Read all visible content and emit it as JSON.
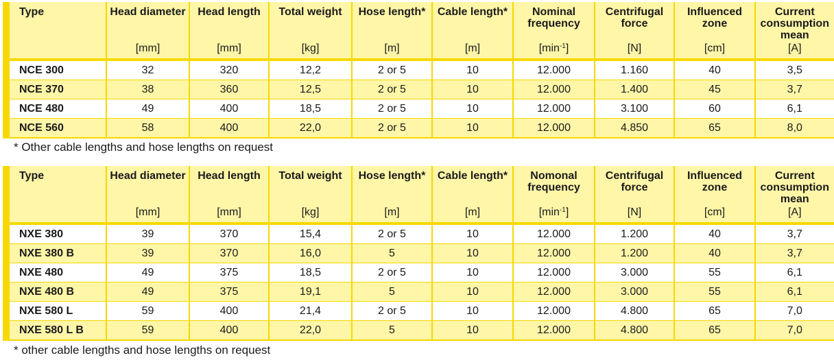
{
  "table1": {
    "headers": [
      {
        "name": "Type",
        "unit": ""
      },
      {
        "name": "Head diameter",
        "unit": "[mm]"
      },
      {
        "name": "Head length",
        "unit": "[mm]"
      },
      {
        "name": "Total weight",
        "unit": "[kg]"
      },
      {
        "name": "Hose length*",
        "unit": "[m]"
      },
      {
        "name": "Cable length*",
        "unit": "[m]"
      },
      {
        "name": "Nominal frequency",
        "unit": "[min-1]"
      },
      {
        "name": "Centrifugal force",
        "unit": "[N]"
      },
      {
        "name": "Influenced zone",
        "unit": "[cm]"
      },
      {
        "name": "Current consumption mean",
        "unit": "[A]"
      }
    ],
    "rows": [
      [
        "NCE 300",
        "32",
        "320",
        "12,2",
        "2 or 5",
        "10",
        "12.000",
        "1.160",
        "40",
        "3,5"
      ],
      [
        "NCE 370",
        "38",
        "360",
        "12,5",
        "2 or 5",
        "10",
        "12.000",
        "1.400",
        "45",
        "3,7"
      ],
      [
        "NCE 480",
        "49",
        "400",
        "18,5",
        "2 or 5",
        "10",
        "12.000",
        "3.100",
        "60",
        "6,1"
      ],
      [
        "NCE 560",
        "58",
        "400",
        "22,0",
        "2 or 5",
        "10",
        "12.000",
        "4.850",
        "65",
        "8,0"
      ]
    ],
    "note": "* Other cable lengths and hose lengths on request"
  },
  "table2": {
    "headers": [
      {
        "name": "Type",
        "unit": ""
      },
      {
        "name": "Head diameter",
        "unit": "[mm]"
      },
      {
        "name": "Head length",
        "unit": "[mm]"
      },
      {
        "name": "Total weight",
        "unit": "[kg]"
      },
      {
        "name": "Hose length*",
        "unit": "[m]"
      },
      {
        "name": "Cable length*",
        "unit": "[m]"
      },
      {
        "name": "Nomonal frequency",
        "unit": "[min-1]"
      },
      {
        "name": "Centrifugal force",
        "unit": "[N]"
      },
      {
        "name": "Influenced zone",
        "unit": "[cm]"
      },
      {
        "name": "Current consumption mean",
        "unit": "[A]"
      }
    ],
    "rows": [
      [
        "NXE 380",
        "39",
        "370",
        "15,4",
        "2 or 5",
        "10",
        "12.000",
        "1.200",
        "40",
        "3,7"
      ],
      [
        "NXE 380 B",
        "39",
        "370",
        "16,0",
        "5",
        "10",
        "12.000",
        "1.200",
        "40",
        "3,7"
      ],
      [
        "NXE 480",
        "49",
        "375",
        "18,5",
        "2 or 5",
        "10",
        "12.000",
        "3.000",
        "55",
        "6,1"
      ],
      [
        "NXE 480 B",
        "49",
        "375",
        "19,1",
        "5",
        "10",
        "12.000",
        "3.000",
        "55",
        "6,1"
      ],
      [
        "NXE 580 L",
        "59",
        "400",
        "21,4",
        "2 or 5",
        "10",
        "12.000",
        "4.800",
        "65",
        "7,0"
      ],
      [
        "NXE 580 L B",
        "59",
        "400",
        "22,0",
        "5",
        "10",
        "12.000",
        "4.800",
        "65",
        "7,0"
      ]
    ],
    "note": "* other cable lengths and hose lengths on request"
  }
}
